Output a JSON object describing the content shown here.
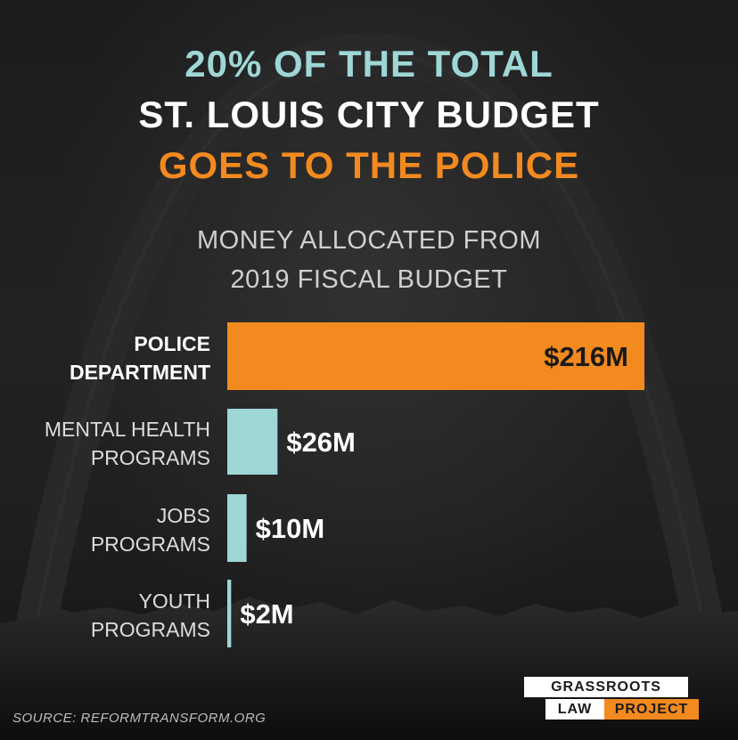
{
  "colors": {
    "teal": "#9fd6d6",
    "white": "#ffffff",
    "orange": "#f28a1f",
    "label_gray": "#dcdcdc"
  },
  "headline": {
    "line1": "20% OF THE TOTAL",
    "line2": "ST. LOUIS CITY BUDGET",
    "line3": "GOES TO THE POLICE"
  },
  "subtitle": {
    "line1": "MONEY ALLOCATED FROM",
    "line2": "2019 FISCAL BUDGET"
  },
  "chart_data": {
    "type": "bar",
    "orientation": "horizontal",
    "unit": "$M",
    "categories": [
      [
        "POLICE",
        "DEPARTMENT"
      ],
      [
        "MENTAL HEALTH",
        "PROGRAMS"
      ],
      [
        "JOBS",
        "PROGRAMS"
      ],
      [
        "YOUTH",
        "PROGRAMS"
      ]
    ],
    "values": [
      216,
      26,
      10,
      2
    ],
    "value_labels": [
      "$216M",
      "$26M",
      "$10M",
      "$2M"
    ],
    "bar_colors": [
      "#f28a1f",
      "#9fd6d6",
      "#9fd6d6",
      "#9fd6d6"
    ],
    "highlighted": [
      true,
      false,
      false,
      false
    ],
    "title": "MONEY ALLOCATED FROM 2019 FISCAL BUDGET",
    "xlim": [
      0,
      216
    ],
    "grid": false,
    "legend": "none"
  },
  "footer": {
    "source": "SOURCE:  REFORMTRANSFORM.ORG"
  },
  "logo": {
    "line1": "GRASSROOTS",
    "line2a": "LAW",
    "line2b": "PROJECT"
  }
}
